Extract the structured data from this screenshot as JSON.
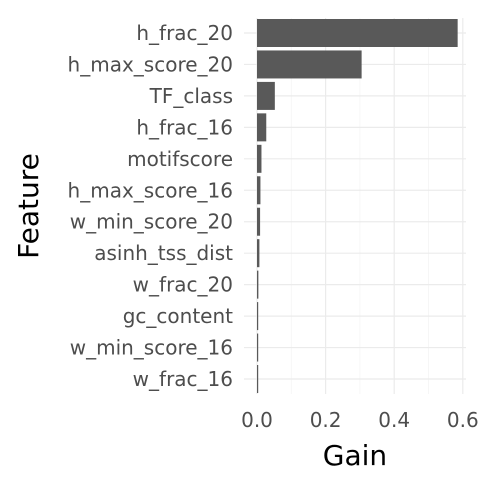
{
  "chart_data": {
    "type": "bar",
    "orientation": "horizontal",
    "categories": [
      "h_frac_20",
      "h_max_score_20",
      "TF_class",
      "h_frac_16",
      "motifscore",
      "h_max_score_16",
      "w_min_score_20",
      "asinh_tss_dist",
      "w_frac_20",
      "gc_content",
      "w_min_score_16",
      "w_frac_16"
    ],
    "values": [
      0.585,
      0.305,
      0.052,
      0.027,
      0.013,
      0.01,
      0.009,
      0.007,
      0.004,
      0.003,
      0.002,
      0.001
    ],
    "xlabel": "Gain",
    "ylabel": "Feature",
    "xlim": [
      0,
      0.6
    ],
    "xticks": [
      0.0,
      0.2,
      0.4,
      0.6
    ],
    "xtick_labels": [
      "0.0",
      "0.2",
      "0.4",
      "0.6"
    ],
    "bar_color": "#595959",
    "grid": true,
    "legend": "none"
  }
}
